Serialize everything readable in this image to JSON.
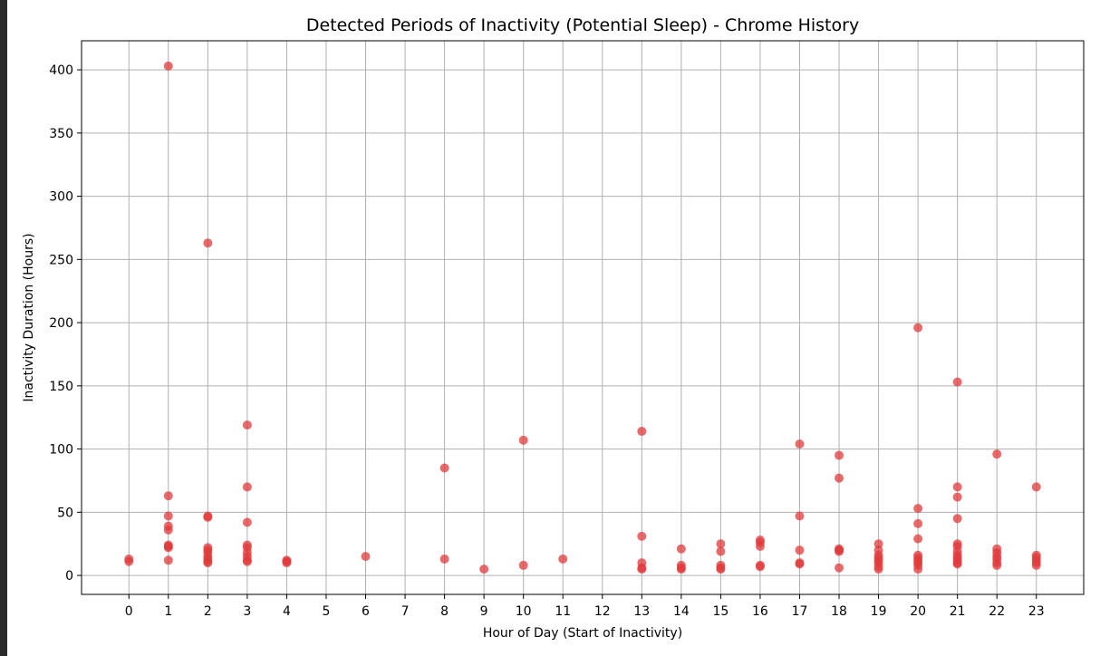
{
  "chart_data": {
    "type": "scatter",
    "title": "Detected Periods of Inactivity (Potential Sleep) - Chrome History",
    "xlabel": "Hour of Day (Start of Inactivity)",
    "ylabel": "Inactivity Duration (Hours)",
    "xlim": [
      -1.2,
      24.2
    ],
    "ylim": [
      -15,
      423
    ],
    "x_ticks": [
      0,
      1,
      2,
      3,
      4,
      5,
      6,
      7,
      8,
      9,
      10,
      11,
      12,
      13,
      14,
      15,
      16,
      17,
      18,
      19,
      20,
      21,
      22,
      23
    ],
    "x_tick_labels": [
      "0",
      "1",
      "2",
      "3",
      "4",
      "5",
      "6",
      "7",
      "8",
      "9",
      "10",
      "11",
      "12",
      "13",
      "14",
      "15",
      "16",
      "17",
      "18",
      "19",
      "20",
      "21",
      "22",
      "23"
    ],
    "y_ticks": [
      0,
      50,
      100,
      150,
      200,
      250,
      300,
      350,
      400
    ],
    "y_tick_labels": [
      "0",
      "50",
      "100",
      "150",
      "200",
      "250",
      "300",
      "350",
      "400"
    ],
    "grid": true,
    "marker_color": "#e0393b",
    "series": [
      {
        "points": [
          [
            0,
            13
          ],
          [
            0,
            11
          ],
          [
            1,
            403
          ],
          [
            1,
            63
          ],
          [
            1,
            47
          ],
          [
            1,
            39
          ],
          [
            1,
            36
          ],
          [
            1,
            24
          ],
          [
            1,
            23
          ],
          [
            1,
            22
          ],
          [
            1,
            12
          ],
          [
            2,
            263
          ],
          [
            2,
            47
          ],
          [
            2,
            46
          ],
          [
            2,
            22
          ],
          [
            2,
            20
          ],
          [
            2,
            18
          ],
          [
            2,
            15
          ],
          [
            2,
            13
          ],
          [
            2,
            11
          ],
          [
            2,
            10
          ],
          [
            3,
            119
          ],
          [
            3,
            70
          ],
          [
            3,
            42
          ],
          [
            3,
            24
          ],
          [
            3,
            22
          ],
          [
            3,
            18
          ],
          [
            3,
            15
          ],
          [
            3,
            12
          ],
          [
            3,
            11
          ],
          [
            4,
            12
          ],
          [
            4,
            11
          ],
          [
            4,
            10
          ],
          [
            6,
            15
          ],
          [
            8,
            85
          ],
          [
            8,
            13
          ],
          [
            9,
            5
          ],
          [
            10,
            107
          ],
          [
            10,
            8
          ],
          [
            11,
            13
          ],
          [
            13,
            114
          ],
          [
            13,
            31
          ],
          [
            13,
            10
          ],
          [
            13,
            6
          ],
          [
            13,
            5
          ],
          [
            14,
            21
          ],
          [
            14,
            8
          ],
          [
            14,
            6
          ],
          [
            14,
            5
          ],
          [
            15,
            25
          ],
          [
            15,
            19
          ],
          [
            15,
            8
          ],
          [
            15,
            6
          ],
          [
            15,
            5
          ],
          [
            16,
            28
          ],
          [
            16,
            26
          ],
          [
            16,
            23
          ],
          [
            16,
            8
          ],
          [
            16,
            7
          ],
          [
            17,
            104
          ],
          [
            17,
            47
          ],
          [
            17,
            20
          ],
          [
            17,
            10
          ],
          [
            17,
            9
          ],
          [
            18,
            95
          ],
          [
            18,
            77
          ],
          [
            18,
            21
          ],
          [
            18,
            20
          ],
          [
            18,
            19
          ],
          [
            18,
            6
          ],
          [
            19,
            25
          ],
          [
            19,
            20
          ],
          [
            19,
            16
          ],
          [
            19,
            14
          ],
          [
            19,
            12
          ],
          [
            19,
            10
          ],
          [
            19,
            7
          ],
          [
            19,
            5
          ],
          [
            20,
            196
          ],
          [
            20,
            53
          ],
          [
            20,
            41
          ],
          [
            20,
            29
          ],
          [
            20,
            16
          ],
          [
            20,
            14
          ],
          [
            20,
            12
          ],
          [
            20,
            10
          ],
          [
            20,
            8
          ],
          [
            20,
            5
          ],
          [
            21,
            153
          ],
          [
            21,
            70
          ],
          [
            21,
            62
          ],
          [
            21,
            45
          ],
          [
            21,
            25
          ],
          [
            21,
            23
          ],
          [
            21,
            19
          ],
          [
            21,
            16
          ],
          [
            21,
            14
          ],
          [
            21,
            12
          ],
          [
            21,
            10
          ],
          [
            21,
            9
          ],
          [
            22,
            96
          ],
          [
            22,
            21
          ],
          [
            22,
            18
          ],
          [
            22,
            15
          ],
          [
            22,
            13
          ],
          [
            22,
            10
          ],
          [
            22,
            8
          ],
          [
            23,
            70
          ],
          [
            23,
            16
          ],
          [
            23,
            14
          ],
          [
            23,
            12
          ],
          [
            23,
            10
          ],
          [
            23,
            8
          ]
        ]
      }
    ]
  }
}
